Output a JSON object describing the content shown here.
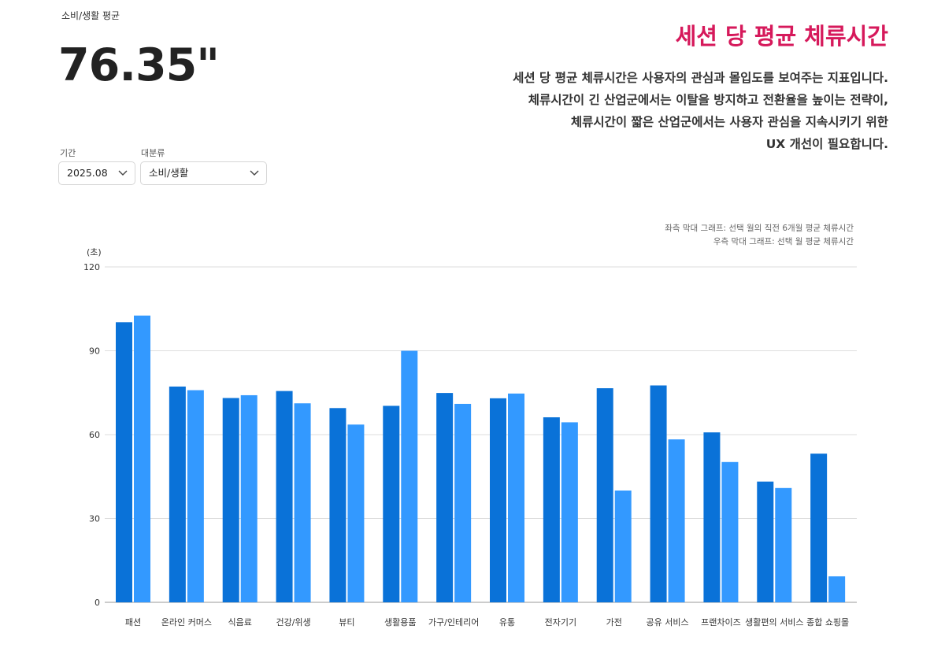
{
  "summary": {
    "label": "소비/생활 평균",
    "value": "76.35\""
  },
  "info": {
    "title": "세션 당 평균 체류시간",
    "lines": [
      "세션 당 평균 체류시간은 사용자의 관심과 몰입도를 보여주는 지표입니다.",
      "체류시간이 긴 산업군에서는 이탈을 방지하고 전환율을 높이는 전략이,",
      "체류시간이 짧은 산업군에서는 사용자 관심을 지속시키기 위한",
      "UX 개선이 필요합니다."
    ]
  },
  "filters": {
    "period_label": "기간",
    "period_value": "2025.08",
    "category_label": "대분류",
    "category_value": "소비/생활"
  },
  "notes": {
    "left_bar": "좌측 막대 그래프: 선택 월의 직전 6개월 평균 체류시간",
    "right_bar": "우측 막대 그래프: 선택 월 평균 체류시간"
  },
  "colors": {
    "series_prev6": "#0a72d8",
    "series_current": "#3399ff",
    "grid": "#dddddd",
    "accent": "#d6195b"
  },
  "chart_data": {
    "type": "bar",
    "ylabel": "(초)",
    "ylim": [
      0,
      120
    ],
    "yticks": [
      0,
      30,
      60,
      90,
      120
    ],
    "grid": true,
    "categories": [
      "패션",
      "온라인 커머스",
      "식음료",
      "건강/위생",
      "뷰티",
      "생활용품",
      "가구/인테리어",
      "유통",
      "전자기기",
      "가전",
      "공유 서비스",
      "프랜차이즈",
      "생활편의 서비스",
      "종합 쇼핑몰"
    ],
    "series": [
      {
        "values": [
          100.2,
          77.2,
          73.1,
          75.6,
          69.5,
          70.3,
          74.9,
          73.0,
          66.2,
          76.6,
          77.6,
          60.8,
          43.2,
          53.2
        ]
      },
      {
        "values": [
          102.6,
          75.9,
          74.1,
          71.2,
          63.6,
          90.0,
          71.0,
          74.7,
          64.4,
          40.0,
          58.3,
          50.2,
          40.9,
          9.3
        ]
      }
    ]
  }
}
